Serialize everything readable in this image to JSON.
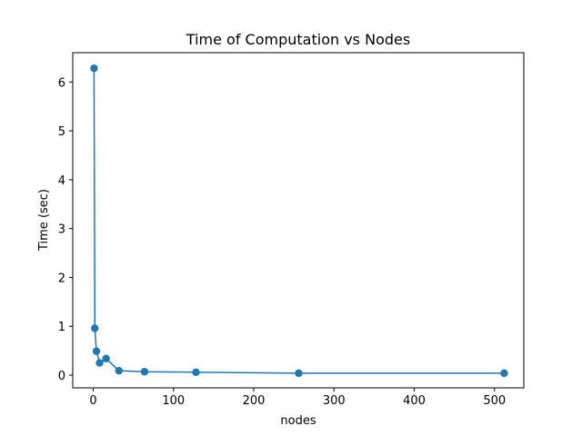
{
  "chart_data": {
    "type": "line",
    "title": "Time of Computation vs Nodes",
    "xlabel": "nodes",
    "ylabel": "Time (sec)",
    "xlim": [
      -25.5,
      536.5
    ],
    "ylim": [
      -0.26,
      6.6
    ],
    "xticks": [
      0,
      100,
      200,
      300,
      400,
      500
    ],
    "yticks": [
      0,
      1,
      2,
      3,
      4,
      5,
      6
    ],
    "grid": false,
    "series": [
      {
        "color": "#1f77b4",
        "marker": "circle",
        "x": [
          1,
          2,
          4,
          8,
          16,
          32,
          64,
          128,
          256,
          512
        ],
        "y": [
          6.28,
          0.96,
          0.49,
          0.25,
          0.34,
          0.09,
          0.07,
          0.06,
          0.04,
          0.04
        ]
      }
    ]
  }
}
